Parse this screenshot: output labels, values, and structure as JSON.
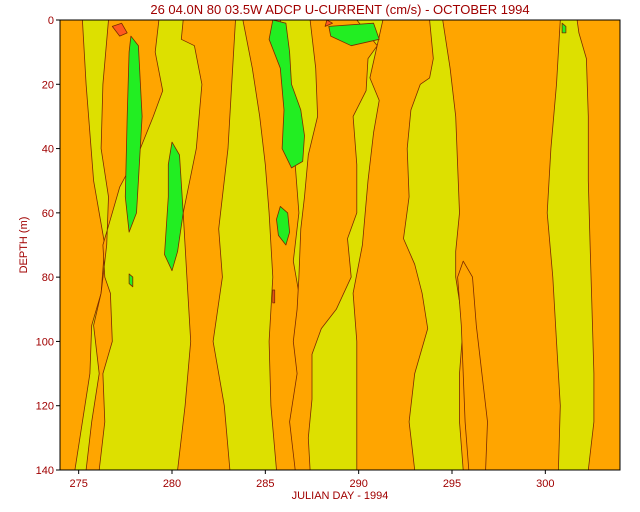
{
  "chart_data": {
    "type": "contour",
    "title": "26 04.0N 80 03.5W ADCP U-CURRENT (cm/s) - OCTOBER 1994",
    "xlabel": "JULIAN DAY - 1994",
    "ylabel": "DEPTH (m)",
    "xlim": [
      274,
      304
    ],
    "ylim": [
      0,
      140
    ],
    "y_inverted": true,
    "x_ticks": [
      "275",
      "280",
      "285",
      "290",
      "295",
      "300"
    ],
    "x_tick_values": [
      275,
      280,
      285,
      290,
      295,
      300
    ],
    "y_ticks": [
      "0",
      "20",
      "40",
      "60",
      "80",
      "100",
      "120",
      "140"
    ],
    "y_tick_values": [
      0,
      20,
      40,
      60,
      80,
      100,
      120,
      140
    ],
    "colors": {
      "background_band": "#dde000",
      "orange_band": "#ffa500",
      "green_band": "#22ee22",
      "red_band": "#ff5a1e",
      "axis_text": "#a00000"
    },
    "regions": [
      {
        "fill": "orange",
        "points": [
          [
            274,
            0
          ],
          [
            275.2,
            0
          ],
          [
            275.4,
            20
          ],
          [
            275.8,
            50
          ],
          [
            276.4,
            70
          ],
          [
            276.2,
            85
          ],
          [
            275.7,
            95
          ],
          [
            275.6,
            110
          ],
          [
            275.2,
            125
          ],
          [
            274.8,
            140
          ],
          [
            274,
            140
          ]
        ]
      },
      {
        "fill": "orange",
        "points": [
          [
            276.6,
            0
          ],
          [
            279.3,
            0
          ],
          [
            279.1,
            10
          ],
          [
            279.5,
            22
          ],
          [
            279,
            30
          ],
          [
            278.3,
            40
          ],
          [
            277.2,
            52
          ],
          [
            276.7,
            62
          ],
          [
            276.3,
            70
          ],
          [
            276.4,
            80
          ],
          [
            276.7,
            85
          ],
          [
            276.8,
            100
          ],
          [
            276.3,
            110
          ],
          [
            276.4,
            125
          ],
          [
            276.1,
            140
          ],
          [
            275.4,
            140
          ],
          [
            275.7,
            125
          ],
          [
            276.1,
            110
          ],
          [
            275.8,
            95
          ],
          [
            276.2,
            85
          ],
          [
            276.5,
            70
          ],
          [
            276.6,
            55
          ],
          [
            276.2,
            40
          ],
          [
            276.3,
            20
          ]
        ]
      },
      {
        "fill": "orange",
        "points": [
          [
            280.6,
            0
          ],
          [
            283.4,
            0
          ],
          [
            283.2,
            20
          ],
          [
            283,
            40
          ],
          [
            282.7,
            55
          ],
          [
            282.5,
            65
          ],
          [
            282.7,
            80
          ],
          [
            282.2,
            100
          ],
          [
            282.8,
            120
          ],
          [
            283.1,
            140
          ],
          [
            280.3,
            140
          ],
          [
            280.7,
            120
          ],
          [
            281,
            100
          ],
          [
            280.8,
            80
          ],
          [
            280.6,
            60
          ],
          [
            281.3,
            40
          ],
          [
            281.6,
            20
          ],
          [
            281.2,
            8
          ],
          [
            280.5,
            6
          ]
        ]
      },
      {
        "fill": "orange",
        "points": [
          [
            283.8,
            0
          ],
          [
            285.8,
            0
          ],
          [
            286,
            15
          ],
          [
            286.3,
            30
          ],
          [
            286.6,
            45
          ],
          [
            286.8,
            60
          ],
          [
            286.5,
            75
          ],
          [
            286.8,
            85
          ],
          [
            287,
            100
          ],
          [
            287.3,
            110
          ],
          [
            286.8,
            125
          ],
          [
            287.1,
            140
          ],
          [
            285.6,
            140
          ],
          [
            285.3,
            120
          ],
          [
            285.2,
            100
          ],
          [
            285.4,
            80
          ],
          [
            285.2,
            60
          ],
          [
            285,
            45
          ],
          [
            284.7,
            30
          ],
          [
            284.3,
            15
          ]
        ]
      },
      {
        "fill": "orange",
        "points": [
          [
            287.4,
            0
          ],
          [
            289.9,
            0
          ],
          [
            291,
            8
          ],
          [
            290.5,
            12
          ],
          [
            290.4,
            22
          ],
          [
            289.7,
            30
          ],
          [
            289.9,
            45
          ],
          [
            289.9,
            60
          ],
          [
            289.4,
            68
          ],
          [
            289.6,
            80
          ],
          [
            288.8,
            90
          ],
          [
            288,
            96
          ],
          [
            287.5,
            104
          ],
          [
            287.5,
            118
          ],
          [
            287.3,
            130
          ],
          [
            287.4,
            140
          ],
          [
            286.6,
            140
          ],
          [
            286.3,
            125
          ],
          [
            286.7,
            110
          ],
          [
            286.5,
            100
          ],
          [
            286.7,
            90
          ],
          [
            286.8,
            80
          ],
          [
            286.9,
            65
          ],
          [
            287.1,
            55
          ],
          [
            287.3,
            42
          ],
          [
            287.8,
            30
          ],
          [
            287.7,
            15
          ]
        ]
      },
      {
        "fill": "orange",
        "points": [
          [
            291.3,
            0
          ],
          [
            293.8,
            0
          ],
          [
            294,
            12
          ],
          [
            293.8,
            18
          ],
          [
            293.3,
            20
          ],
          [
            292.8,
            28
          ],
          [
            292.6,
            40
          ],
          [
            292.7,
            55
          ],
          [
            292.4,
            68
          ],
          [
            293,
            76
          ],
          [
            293.4,
            85
          ],
          [
            293.7,
            96
          ],
          [
            293,
            110
          ],
          [
            292.7,
            125
          ],
          [
            293,
            140
          ],
          [
            289.9,
            140
          ],
          [
            289.9,
            120
          ],
          [
            289.9,
            100
          ],
          [
            289.7,
            85
          ],
          [
            290.2,
            70
          ],
          [
            290.5,
            50
          ],
          [
            290.8,
            35
          ],
          [
            291.1,
            25
          ],
          [
            290.6,
            18
          ]
        ]
      },
      {
        "fill": "orange",
        "points": [
          [
            294.5,
            0
          ],
          [
            300.8,
            0
          ],
          [
            300.6,
            20
          ],
          [
            300.3,
            40
          ],
          [
            300.1,
            60
          ],
          [
            300.4,
            80
          ],
          [
            300.6,
            100
          ],
          [
            300.8,
            120
          ],
          [
            300.7,
            140
          ],
          [
            295.6,
            140
          ],
          [
            295.4,
            125
          ],
          [
            295.4,
            110
          ],
          [
            295.6,
            95
          ],
          [
            295.2,
            80
          ],
          [
            295.2,
            72
          ],
          [
            295.4,
            60
          ],
          [
            295.3,
            45
          ],
          [
            295.2,
            30
          ],
          [
            294.9,
            15
          ]
        ]
      },
      {
        "fill": "orange",
        "points": [
          [
            295.6,
            75
          ],
          [
            296.1,
            80
          ],
          [
            296.3,
            95
          ],
          [
            296.6,
            110
          ],
          [
            296.9,
            125
          ],
          [
            296.8,
            140
          ],
          [
            295.9,
            140
          ],
          [
            295.7,
            125
          ],
          [
            295.6,
            110
          ],
          [
            295.5,
            95
          ],
          [
            295.3,
            80
          ]
        ]
      },
      {
        "fill": "orange",
        "points": [
          [
            301.7,
            0
          ],
          [
            304,
            0
          ],
          [
            304,
            140
          ],
          [
            302.3,
            140
          ],
          [
            302.6,
            125
          ],
          [
            302.6,
            110
          ],
          [
            302.5,
            90
          ],
          [
            302.4,
            70
          ],
          [
            302.3,
            50
          ],
          [
            302.3,
            30
          ],
          [
            302.2,
            12
          ],
          [
            301.8,
            4
          ]
        ]
      },
      {
        "fill": "green",
        "points": [
          [
            277.8,
            5
          ],
          [
            278.2,
            8
          ],
          [
            278.4,
            30
          ],
          [
            278.2,
            50
          ],
          [
            278.1,
            60
          ],
          [
            277.7,
            66
          ],
          [
            277.5,
            55
          ],
          [
            277.6,
            30
          ],
          [
            277.7,
            10
          ]
        ]
      },
      {
        "fill": "green",
        "points": [
          [
            280,
            38
          ],
          [
            280.4,
            42
          ],
          [
            280.6,
            60
          ],
          [
            280.3,
            72
          ],
          [
            280,
            78
          ],
          [
            279.6,
            73
          ],
          [
            279.8,
            55
          ],
          [
            279.8,
            45
          ]
        ]
      },
      {
        "fill": "green",
        "points": [
          [
            285.4,
            0
          ],
          [
            286.1,
            1
          ],
          [
            286.3,
            10
          ],
          [
            286.4,
            20
          ],
          [
            286.9,
            28
          ],
          [
            287.1,
            36
          ],
          [
            287,
            44
          ],
          [
            286.4,
            46
          ],
          [
            285.9,
            40
          ],
          [
            286,
            28
          ],
          [
            285.8,
            15
          ],
          [
            285.2,
            6
          ]
        ]
      },
      {
        "fill": "green",
        "points": [
          [
            285.8,
            58
          ],
          [
            286.2,
            60
          ],
          [
            286.3,
            66
          ],
          [
            286.1,
            70
          ],
          [
            285.7,
            67
          ],
          [
            285.6,
            62
          ]
        ]
      },
      {
        "fill": "green",
        "points": [
          [
            288.4,
            2
          ],
          [
            290.8,
            1
          ],
          [
            291.1,
            6
          ],
          [
            289.6,
            8
          ],
          [
            288.5,
            5
          ]
        ]
      },
      {
        "fill": "green",
        "points": [
          [
            300.9,
            1
          ],
          [
            301.1,
            2
          ],
          [
            301.1,
            4
          ],
          [
            300.9,
            4
          ]
        ]
      },
      {
        "fill": "green",
        "points": [
          [
            277.7,
            79
          ],
          [
            277.9,
            80
          ],
          [
            277.9,
            83
          ],
          [
            277.7,
            82
          ]
        ]
      },
      {
        "fill": "red",
        "points": [
          [
            276.8,
            2
          ],
          [
            277.3,
            1
          ],
          [
            277.6,
            4
          ],
          [
            277.2,
            5
          ]
        ]
      },
      {
        "fill": "red",
        "points": [
          [
            288.3,
            0
          ],
          [
            288.6,
            1
          ],
          [
            288.2,
            2
          ]
        ]
      },
      {
        "fill": "red",
        "points": [
          [
            285.4,
            84
          ],
          [
            285.5,
            84
          ],
          [
            285.5,
            88
          ],
          [
            285.4,
            88
          ]
        ]
      }
    ]
  }
}
